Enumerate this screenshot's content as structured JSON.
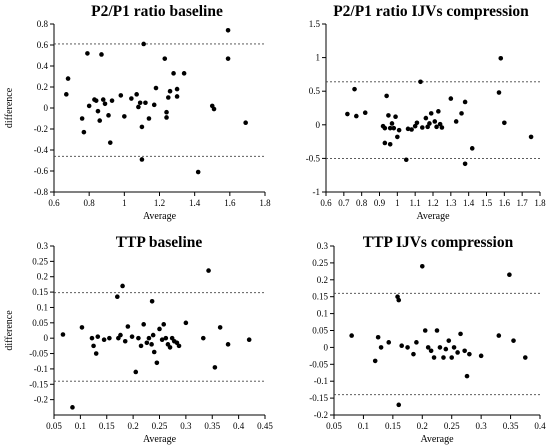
{
  "chart_data": [
    {
      "type": "scatter",
      "title": "P2/P1 ratio baseline",
      "xlabel": "Average",
      "ylabel": "difference",
      "xlim": [
        0.6,
        1.8
      ],
      "ylim": [
        -0.8,
        0.8
      ],
      "xticks": [
        "0.6",
        "0.8",
        "1",
        "1.2",
        "1.4",
        "1.6",
        "1.8"
      ],
      "yticks": [
        "-0.8",
        "-0.6",
        "-0.4",
        "-0.2",
        "0",
        "0.2",
        "0.4",
        "0.6",
        "0.8"
      ],
      "ref_lines": [
        0.61,
        -0.46
      ],
      "points": [
        [
          0.67,
          0.13
        ],
        [
          0.68,
          0.28
        ],
        [
          0.76,
          -0.1
        ],
        [
          0.77,
          -0.23
        ],
        [
          0.79,
          0.52
        ],
        [
          0.8,
          0.02
        ],
        [
          0.83,
          0.08
        ],
        [
          0.84,
          0.07
        ],
        [
          0.85,
          -0.03
        ],
        [
          0.86,
          -0.12
        ],
        [
          0.87,
          0.51
        ],
        [
          0.88,
          0.08
        ],
        [
          0.89,
          0.04
        ],
        [
          0.91,
          -0.07
        ],
        [
          0.92,
          -0.33
        ],
        [
          0.93,
          0.07
        ],
        [
          0.98,
          0.12
        ],
        [
          1.0,
          -0.08
        ],
        [
          1.04,
          0.09
        ],
        [
          1.07,
          0.13
        ],
        [
          1.08,
          0.01
        ],
        [
          1.09,
          0.05
        ],
        [
          1.1,
          -0.18
        ],
        [
          1.1,
          -0.49
        ],
        [
          1.11,
          0.61
        ],
        [
          1.12,
          0.05
        ],
        [
          1.14,
          -0.1
        ],
        [
          1.17,
          0.03
        ],
        [
          1.18,
          0.19
        ],
        [
          1.23,
          0.47
        ],
        [
          1.24,
          -0.04
        ],
        [
          1.24,
          -0.09
        ],
        [
          1.25,
          0.1
        ],
        [
          1.26,
          0.16
        ],
        [
          1.28,
          0.33
        ],
        [
          1.3,
          0.18
        ],
        [
          1.34,
          0.33
        ],
        [
          1.42,
          -0.61
        ],
        [
          1.5,
          0.02
        ],
        [
          1.51,
          -0.01
        ],
        [
          1.59,
          0.74
        ],
        [
          1.59,
          0.47
        ],
        [
          1.69,
          -0.14
        ],
        [
          1.3,
          0.11
        ]
      ]
    },
    {
      "type": "scatter",
      "title": "P2/P1 ratio IJVs compression",
      "xlabel": "Average",
      "ylabel": "",
      "xlim": [
        0.6,
        1.8
      ],
      "ylim": [
        -1,
        1.5
      ],
      "xticks": [
        "0.6",
        "0.7",
        "0.8",
        "0.9",
        "1",
        "1.1",
        "1.2",
        "1.3",
        "1.4",
        "1.5",
        "1.6",
        "1.7",
        "1.8"
      ],
      "yticks": [
        "-1",
        "-0.5",
        "0",
        "0.5",
        "1",
        "1.5"
      ],
      "ref_lines": [
        0.64,
        -0.5
      ],
      "points": [
        [
          0.72,
          0.16
        ],
        [
          0.76,
          0.53
        ],
        [
          0.77,
          0.13
        ],
        [
          0.82,
          0.18
        ],
        [
          0.92,
          -0.02
        ],
        [
          0.93,
          -0.05
        ],
        [
          0.93,
          -0.27
        ],
        [
          0.94,
          0.43
        ],
        [
          0.95,
          0.14
        ],
        [
          0.96,
          -0.05
        ],
        [
          0.96,
          -0.29
        ],
        [
          0.97,
          0.02
        ],
        [
          0.98,
          -0.05
        ],
        [
          0.99,
          0.12
        ],
        [
          1.0,
          -0.18
        ],
        [
          1.01,
          -0.08
        ],
        [
          1.05,
          -0.52
        ],
        [
          1.06,
          -0.06
        ],
        [
          1.08,
          -0.07
        ],
        [
          1.1,
          -0.02
        ],
        [
          1.11,
          0.03
        ],
        [
          1.13,
          0.64
        ],
        [
          1.14,
          -0.04
        ],
        [
          1.16,
          0.1
        ],
        [
          1.17,
          -0.03
        ],
        [
          1.18,
          0.02
        ],
        [
          1.19,
          0.17
        ],
        [
          1.21,
          0.05
        ],
        [
          1.22,
          -0.03
        ],
        [
          1.23,
          0.2
        ],
        [
          1.24,
          0.01
        ],
        [
          1.25,
          -0.04
        ],
        [
          1.3,
          0.39
        ],
        [
          1.33,
          0.05
        ],
        [
          1.36,
          0.17
        ],
        [
          1.38,
          0.34
        ],
        [
          1.38,
          -0.58
        ],
        [
          1.42,
          -0.35
        ],
        [
          1.57,
          0.48
        ],
        [
          1.58,
          0.99
        ],
        [
          1.6,
          0.03
        ],
        [
          1.75,
          -0.18
        ]
      ]
    },
    {
      "type": "scatter",
      "title": "TTP baseline",
      "xlabel": "Average",
      "ylabel": "difference",
      "xlim": [
        0.05,
        0.45
      ],
      "ylim": [
        -0.25,
        0.3
      ],
      "xticks": [
        "0.05",
        "0.1",
        "0.15",
        "0.2",
        "0.25",
        "0.3",
        "0.35",
        "0.4",
        "0.45"
      ],
      "yticks": [
        "-0.2",
        "-0.15",
        "-0.1",
        "-0.05",
        "0",
        "0.05",
        "0.1",
        "0.15",
        "0.2",
        "0.25",
        "0.3"
      ],
      "ref_lines": [
        0.148,
        -0.14
      ],
      "points": [
        [
          0.067,
          0.012
        ],
        [
          0.085,
          -0.225
        ],
        [
          0.103,
          0.035
        ],
        [
          0.122,
          0.0
        ],
        [
          0.125,
          -0.025
        ],
        [
          0.13,
          -0.05
        ],
        [
          0.133,
          0.005
        ],
        [
          0.145,
          -0.005
        ],
        [
          0.155,
          0.0
        ],
        [
          0.17,
          0.135
        ],
        [
          0.172,
          0.0
        ],
        [
          0.176,
          0.01
        ],
        [
          0.18,
          0.17
        ],
        [
          0.185,
          -0.01
        ],
        [
          0.19,
          0.038
        ],
        [
          0.198,
          0.005
        ],
        [
          0.205,
          -0.11
        ],
        [
          0.21,
          0.0
        ],
        [
          0.215,
          -0.025
        ],
        [
          0.22,
          0.045
        ],
        [
          0.226,
          -0.015
        ],
        [
          0.23,
          0.0
        ],
        [
          0.235,
          -0.02
        ],
        [
          0.236,
          0.12
        ],
        [
          0.238,
          0.01
        ],
        [
          0.24,
          -0.045
        ],
        [
          0.245,
          -0.08
        ],
        [
          0.25,
          0.03
        ],
        [
          0.255,
          -0.005
        ],
        [
          0.258,
          0.045
        ],
        [
          0.262,
          0.0
        ],
        [
          0.266,
          -0.02
        ],
        [
          0.27,
          -0.03
        ],
        [
          0.274,
          0.0
        ],
        [
          0.278,
          -0.01
        ],
        [
          0.283,
          -0.015
        ],
        [
          0.287,
          -0.025
        ],
        [
          0.3,
          0.05
        ],
        [
          0.333,
          0.0
        ],
        [
          0.343,
          0.22
        ],
        [
          0.355,
          -0.095
        ],
        [
          0.365,
          0.035
        ],
        [
          0.38,
          -0.02
        ],
        [
          0.42,
          -0.005
        ]
      ]
    },
    {
      "type": "scatter",
      "title": "TTP IJVs compression",
      "xlabel": "Average",
      "ylabel": "",
      "xlim": [
        0.05,
        0.4
      ],
      "ylim": [
        -0.2,
        0.3
      ],
      "xticks": [
        "0.05",
        "0.1",
        "0.15",
        "0.2",
        "0.25",
        "0.3",
        "0.35",
        "0.4"
      ],
      "yticks": [
        "-0.2",
        "-0.15",
        "-0.1",
        "-0.05",
        "0",
        "0.05",
        "0.1",
        "0.15",
        "0.2",
        "0.25",
        "0.3"
      ],
      "ref_lines": [
        0.16,
        -0.14
      ],
      "points": [
        [
          0.08,
          0.035
        ],
        [
          0.12,
          -0.04
        ],
        [
          0.125,
          0.03
        ],
        [
          0.13,
          0.0
        ],
        [
          0.143,
          0.015
        ],
        [
          0.158,
          0.15
        ],
        [
          0.16,
          0.14
        ],
        [
          0.16,
          -0.17
        ],
        [
          0.165,
          0.005
        ],
        [
          0.175,
          0.0
        ],
        [
          0.185,
          -0.02
        ],
        [
          0.19,
          0.015
        ],
        [
          0.2,
          0.24
        ],
        [
          0.205,
          0.05
        ],
        [
          0.21,
          0.0
        ],
        [
          0.215,
          -0.01
        ],
        [
          0.22,
          -0.03
        ],
        [
          0.225,
          0.05
        ],
        [
          0.23,
          0.0
        ],
        [
          0.236,
          -0.03
        ],
        [
          0.24,
          -0.005
        ],
        [
          0.245,
          0.02
        ],
        [
          0.25,
          -0.03
        ],
        [
          0.254,
          0.0
        ],
        [
          0.26,
          -0.015
        ],
        [
          0.265,
          0.04
        ],
        [
          0.272,
          -0.01
        ],
        [
          0.276,
          -0.085
        ],
        [
          0.28,
          -0.02
        ],
        [
          0.3,
          -0.025
        ],
        [
          0.33,
          0.035
        ],
        [
          0.348,
          0.215
        ],
        [
          0.355,
          0.02
        ],
        [
          0.375,
          -0.03
        ]
      ]
    }
  ]
}
